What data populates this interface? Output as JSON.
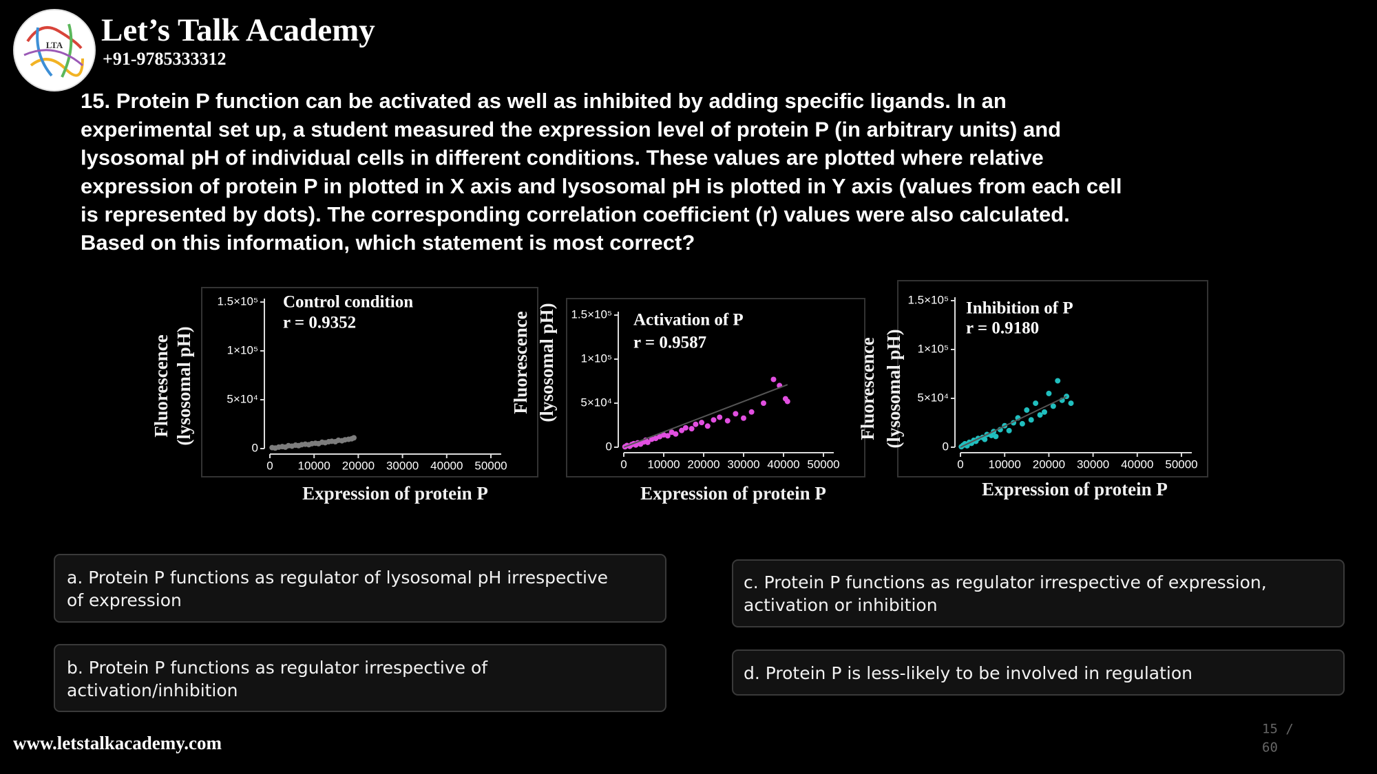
{
  "header": {
    "title": "Let’s Talk Academy",
    "phone": "+91-9785333312",
    "logo_text": "LTA"
  },
  "question": {
    "lines": [
      "15. Protein P function can be activated as well as inhibited by adding specific ligands. In an",
      "experimental set up, a student measured the expression level of protein P (in arbitrary units) and",
      "lysosomal pH of individual cells in different conditions. These values are plotted where relative",
      "expression of protein P in plotted in X axis and lysosomal pH is plotted in Y axis (values from each cell",
      "is represented by dots). The corresponding correlation coefficient (r) values were also calculated.",
      "Based on this information, which statement is most correct?"
    ]
  },
  "chart_data": [
    {
      "type": "scatter",
      "annotation_lines": [
        "Control condition",
        "r = 0.9352"
      ],
      "ylabel_lines": [
        "Fluorescence",
        "(lysosomal pH)"
      ],
      "xlabel": "Expression of protein P",
      "color": "#7d7d7d",
      "x": [
        500,
        1200,
        2000,
        2800,
        3500,
        4200,
        5000,
        5800,
        6500,
        7200,
        8000,
        8800,
        9500,
        10300,
        11000,
        11800,
        12500,
        13300,
        14000,
        14800,
        15500,
        16300,
        17000,
        17800,
        18500,
        19000
      ],
      "y": [
        1000,
        500,
        1500,
        2000,
        1500,
        3000,
        2500,
        3500,
        3000,
        4000,
        4500,
        4000,
        5000,
        5500,
        5000,
        6500,
        6000,
        7000,
        7500,
        7000,
        8500,
        8000,
        9000,
        9500,
        10000,
        11000
      ],
      "xlim": [
        0,
        50000
      ],
      "ylim": [
        0,
        150000
      ],
      "xticks": [
        0,
        10000,
        20000,
        30000,
        40000,
        50000
      ],
      "yticks": [
        0,
        {
          "value": 50000,
          "label": "5×10⁴"
        },
        {
          "value": 100000,
          "label": "1×10⁵"
        },
        {
          "value": 150000,
          "label": "1.5×10⁵"
        }
      ]
    },
    {
      "type": "scatter",
      "annotation_lines": [
        "Activation of P",
        "r = 0.9587"
      ],
      "ylabel_lines": [
        "Fluorescence",
        "(lysosomal pH)"
      ],
      "xlabel": "Expression of protein P",
      "color": "#e14fe0",
      "x": [
        300,
        800,
        1500,
        2000,
        2500,
        3000,
        3500,
        4200,
        5000,
        5500,
        6000,
        7000,
        8000,
        9000,
        10000,
        11000,
        12000,
        13000,
        14500,
        15500,
        17000,
        18000,
        19500,
        21000,
        22500,
        24000,
        26000,
        28000,
        30000,
        32000,
        35000,
        37500,
        39000,
        40500,
        41000
      ],
      "y": [
        500,
        2000,
        1000,
        3000,
        4000,
        2500,
        5000,
        3500,
        6000,
        8000,
        5500,
        9000,
        10000,
        12000,
        14000,
        13000,
        17000,
        15000,
        19000,
        22000,
        21000,
        26000,
        28000,
        24000,
        31000,
        34000,
        30000,
        38000,
        33000,
        40000,
        50000,
        77000,
        70000,
        55000,
        52000
      ],
      "fit": {
        "x": [
          0,
          41000
        ],
        "y": [
          0,
          71000
        ]
      },
      "xlim": [
        0,
        50000
      ],
      "ylim": [
        0,
        150000
      ],
      "xticks": [
        0,
        10000,
        20000,
        30000,
        40000,
        50000
      ],
      "yticks": [
        0,
        {
          "value": 50000,
          "label": "5×10⁴"
        },
        {
          "value": 100000,
          "label": "1×10⁵"
        },
        {
          "value": 150000,
          "label": "1.5×10⁵"
        }
      ]
    },
    {
      "type": "scatter",
      "annotation_lines": [
        "Inhibition of P",
        "r = 0.9180"
      ],
      "ylabel_lines": [
        "Fluorescence",
        "(lysosomal pH)"
      ],
      "xlabel": "Expression of protein P",
      "color": "#20bfbf",
      "x": [
        200,
        600,
        1000,
        1500,
        2000,
        2500,
        3000,
        3500,
        4000,
        5000,
        5500,
        6000,
        7000,
        7500,
        8000,
        9000,
        10000,
        11000,
        12000,
        13000,
        14000,
        15000,
        16000,
        17000,
        18000,
        19000,
        20000,
        21000,
        22000,
        23000,
        24000,
        25000
      ],
      "y": [
        500,
        2000,
        3500,
        1500,
        5000,
        4000,
        7000,
        6000,
        9000,
        10000,
        8000,
        13000,
        12000,
        16000,
        11000,
        18000,
        22000,
        17000,
        25000,
        30000,
        24000,
        38000,
        28000,
        45000,
        33000,
        36000,
        55000,
        42000,
        68000,
        48000,
        52000,
        45000
      ],
      "fit": {
        "x": [
          0,
          24000
        ],
        "y": [
          0,
          52000
        ]
      },
      "xlim": [
        0,
        50000
      ],
      "ylim": [
        0,
        150000
      ],
      "xticks": [
        0,
        10000,
        20000,
        30000,
        40000,
        50000
      ],
      "yticks": [
        0,
        {
          "value": 50000,
          "label": "5×10⁴"
        },
        {
          "value": 100000,
          "label": "1×10⁵"
        },
        {
          "value": 150000,
          "label": "1.5×10⁵"
        }
      ]
    }
  ],
  "options": [
    {
      "lines": [
        "a. Protein P functions as regulator of lysosomal pH irrespective",
        "of expression"
      ]
    },
    {
      "lines": [
        "b. Protein P functions as regulator irrespective of",
        "activation/inhibition"
      ]
    },
    {
      "lines": [
        "c. Protein P functions as regulator irrespective of expression,",
        "activation or inhibition"
      ]
    },
    {
      "lines": [
        "d. Protein P is less-likely to be involved in regulation"
      ]
    }
  ],
  "footer": {
    "website": "www.letstalkacademy.com",
    "page_counter": [
      "15 /",
      "60"
    ]
  }
}
